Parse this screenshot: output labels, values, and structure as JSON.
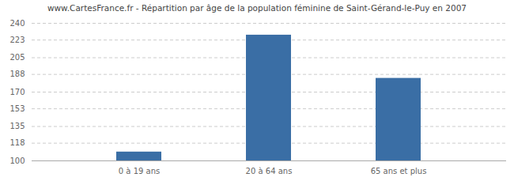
{
  "chart_data": {
    "type": "bar",
    "title": "www.CartesFrance.fr - Répartition par âge de la population féminine de Saint-Gérand-le-Puy en 2007",
    "categories": [
      "0 à 19 ans",
      "20 à 64 ans",
      "65 ans et plus"
    ],
    "values": [
      109,
      228,
      184
    ],
    "color": "#3A6EA5",
    "ylim": [
      100,
      240
    ],
    "yticks": [
      100,
      118,
      135,
      153,
      170,
      188,
      205,
      223,
      240
    ],
    "grid": true
  }
}
